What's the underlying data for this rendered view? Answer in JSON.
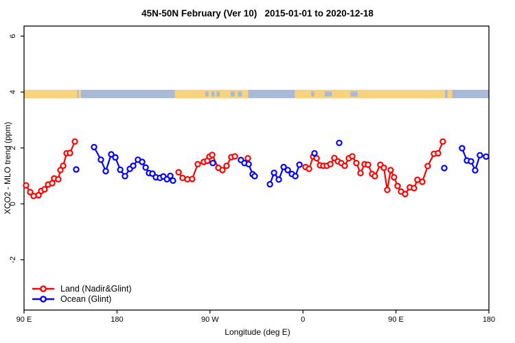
{
  "chart_data": {
    "type": "line",
    "title": "45N-50N February (Ver 10)   2015-01-01 to 2020-12-18",
    "xlabel": "Longitude (deg E)",
    "ylabel": "XCO2 - MLO trend (ppm)",
    "xlim": [
      90,
      540
    ],
    "ylim": [
      -3.8,
      6.36
    ],
    "grid": false,
    "legend_position": "bottom-left",
    "x_axis": {
      "tick_values": [
        90,
        180,
        270,
        360,
        450,
        540
      ],
      "tick_labels": [
        "90 E",
        "180",
        "90 W",
        "0",
        "90 E",
        "180"
      ]
    },
    "y_axis": {
      "tick_values": [
        -2,
        0,
        2,
        4,
        6
      ],
      "tick_labels": [
        "-2",
        "0",
        "2",
        "4",
        "6"
      ]
    },
    "series": [
      {
        "id": "land",
        "name": "Land (Nadir&Glint)",
        "color": "#ff0000",
        "marker": "open-circle",
        "segments": [
          {
            "x": [
              92.0,
              96.0,
              99.3,
              104.0,
              106.6,
              109.9,
              113.3,
              117.3,
              119.2,
              123.2,
              125.2,
              127.9,
              131.2,
              134.5,
              139.2
            ],
            "y": [
              0.66,
              0.42,
              0.28,
              0.31,
              0.46,
              0.52,
              0.69,
              0.74,
              0.91,
              0.88,
              1.21,
              1.36,
              1.81,
              1.82,
              2.23
            ]
          },
          {
            "x": [
              239.6,
              243.5,
              248.2,
              252.8,
              258.2,
              264.1,
              267.5,
              269.5,
              272.1,
              278.1,
              282.1,
              286.1,
              290.7,
              294.1
            ],
            "y": [
              1.13,
              0.93,
              0.88,
              0.89,
              1.42,
              1.5,
              1.54,
              1.69,
              1.75,
              1.29,
              1.21,
              1.36,
              1.67,
              1.7
            ]
          },
          {
            "x": [
              362.5,
              365.9,
              369.9,
              373.2,
              376.5,
              379.8,
              383.1,
              386.5,
              390.4,
              393.8,
              397.1,
              400.4,
              404.4,
              407.7,
              411.7,
              415.7,
              419.7,
              423.0,
              427.0,
              429.6,
              434.9,
              438.3,
              441.6,
              444.9,
              448.2,
              451.6,
              454.9,
              458.9,
              463.5,
              467.5,
              470.8,
              475.5,
              480.8,
              486.8,
              490.8,
              495.4
            ],
            "y": [
              1.32,
              1.25,
              1.69,
              1.63,
              1.38,
              1.36,
              1.36,
              1.42,
              1.64,
              1.52,
              1.46,
              1.36,
              1.63,
              1.7,
              1.46,
              1.1,
              1.42,
              1.4,
              1.07,
              0.99,
              1.4,
              1.29,
              0.5,
              1.21,
              0.95,
              0.64,
              0.44,
              0.35,
              0.59,
              0.56,
              0.86,
              0.79,
              1.35,
              1.79,
              1.81,
              2.23
            ]
          }
        ],
        "isolated_points": [
          [
            306.7,
            1.63
          ]
        ]
      },
      {
        "id": "ocean",
        "name": "Ocean (Glint)",
        "color": "#0000ff",
        "marker": "open-circle",
        "segments": [
          {
            "x": [
              157.8,
              164.4,
              169.1,
              174.4,
              178.4,
              183.1,
              187.7,
              192.4,
              195.7,
              200.3,
              204.3,
              207.7,
              211.0,
              214.3,
              217.6,
              221.6,
              224.9,
              228.3,
              231.6,
              234.2
            ],
            "y": [
              2.03,
              1.58,
              1.17,
              1.77,
              1.66,
              1.22,
              0.99,
              1.25,
              1.36,
              1.58,
              1.5,
              1.3,
              1.1,
              1.08,
              0.95,
              0.93,
              0.98,
              0.88,
              1.0,
              0.83
            ]
          },
          {
            "x": [
              300.0,
              303.4,
              307.4,
              311.3,
              313.3
            ],
            "y": [
              1.57,
              1.46,
              1.42,
              1.06,
              0.99
            ]
          },
          {
            "x": [
              328.0,
              332.0,
              336.6,
              341.3,
              345.3,
              349.2,
              352.6,
              356.6
            ],
            "y": [
              0.7,
              1.11,
              0.87,
              1.32,
              1.21,
              1.07,
              0.99,
              1.4
            ]
          },
          {
            "x": [
              514.0,
              518.7,
              522.7,
              526.7,
              531.3,
              537.3
            ],
            "y": [
              1.99,
              1.55,
              1.52,
              1.2,
              1.74,
              1.69
            ]
          }
        ],
        "isolated_points": [
          [
            140.5,
            1.23
          ],
          [
            272.8,
            1.46
          ],
          [
            371.2,
            1.81
          ],
          [
            395.1,
            2.18
          ],
          [
            496.8,
            1.28
          ]
        ]
      }
    ],
    "map_strip": {
      "description": "world land/ocean band at 45N-50N",
      "v_range": [
        3.78,
        4.08
      ],
      "ocean_color": "#a8bad8",
      "land_color": "#f9d27d",
      "land_segments": [
        [
          90,
          141.5
        ],
        [
          142.8,
          145
        ],
        [
          236,
          307
        ],
        [
          352,
          497.5
        ],
        [
          500,
          504.5
        ]
      ],
      "water_patches": [
        [
          265.5,
          268.5
        ],
        [
          271.5,
          274.5
        ],
        [
          276.5,
          279.5
        ],
        [
          290,
          294
        ],
        [
          297,
          301
        ],
        [
          368,
          371
        ],
        [
          381,
          388
        ],
        [
          406,
          413
        ]
      ]
    }
  }
}
